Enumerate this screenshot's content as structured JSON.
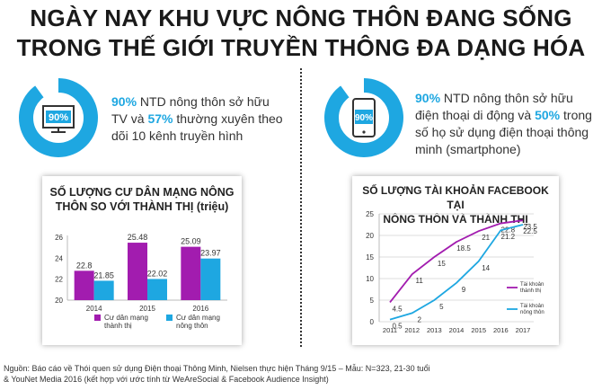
{
  "title": {
    "line1": "NGÀY NAY KHU VỰC NÔNG THÔN ĐANG SỐNG",
    "line2": "TRONG THẾ GIỚI TRUYỀN THÔNG ĐA DẠNG HÓA"
  },
  "stat_tv": {
    "percent": "90%",
    "pct1": "90%",
    "text1": " NTD nông thôn sở hữu",
    "text2a": "TV và ",
    "pct2": "57%",
    "text2b": " thường xuyên theo",
    "text3": "dõi 10 kênh truyền hình",
    "fill_percent": 90
  },
  "stat_phone": {
    "percent": "90%",
    "pct1": "90%",
    "text1": " NTD nông thôn sở hữu",
    "text2a": "điện thoại di động và ",
    "pct2": "50%",
    "text2b": " trong",
    "text3": "số họ sử dụng điện thoại thông",
    "text4": "minh (smartphone)",
    "fill_percent": 90
  },
  "colors": {
    "accent_blue": "#1ea7e1",
    "magenta": "#a21caf",
    "donut_light": "#ffffff"
  },
  "chart_data": [
    {
      "type": "bar",
      "title_line1": "SỐ LƯỢNG CƯ DÂN MẠNG NÔNG",
      "title_line2": "THÔN SO VỚI THÀNH THỊ (triệu)",
      "categories": [
        "2014",
        "2015",
        "2016"
      ],
      "series": [
        {
          "name": "Cư dân mạng thành thị",
          "name_line1": "Cư dân mạng",
          "name_line2": "thành thị",
          "color": "#a21caf",
          "values": [
            22.8,
            25.48,
            25.09
          ],
          "labels": [
            "22.8",
            "25.48",
            "25.09"
          ]
        },
        {
          "name": "Cư dân mạng nông thôn",
          "name_line1": "Cư dân mạng",
          "name_line2": "nông thôn",
          "color": "#1ea7e1",
          "values": [
            21.85,
            22.02,
            23.97
          ],
          "labels": [
            "21.85",
            "22.02",
            "23.97"
          ]
        }
      ],
      "yticks": [
        "20",
        "22",
        "24",
        "26"
      ],
      "ylim": [
        20,
        26
      ],
      "legend": "bottom"
    },
    {
      "type": "line",
      "title_line1": "SỐ LƯỢNG TÀI KHOẢN FACEBOOK TẠI",
      "title_line2": "NÔNG THÔN VÀ THÀNH THỊ",
      "x": [
        "2011",
        "2012",
        "2013",
        "2014",
        "2015",
        "2016",
        "2017"
      ],
      "series": [
        {
          "name": "Tài khoản thành thị",
          "name_line1": "Tài khoản",
          "name_line2": "thành thị",
          "color": "#a21caf",
          "values": [
            4.5,
            11,
            15,
            18.5,
            21,
            22.8,
            23.5
          ],
          "labels": [
            "4.5",
            "11",
            "15",
            "18.5",
            "21",
            "22.8",
            "23.5"
          ]
        },
        {
          "name": "Tài khoản nông thôn",
          "name_line1": "Tài khoản",
          "name_line2": "nông thôn",
          "color": "#1ea7e1",
          "values": [
            0.5,
            2,
            5,
            9,
            14,
            21.2,
            22.5
          ],
          "labels": [
            "0.5",
            "2",
            "5",
            "9",
            "14",
            "21.2",
            "22.5"
          ]
        }
      ],
      "yticks": [
        "0",
        "5",
        "10",
        "15",
        "20",
        "25"
      ],
      "ylim": [
        0,
        25
      ],
      "grid": true,
      "legend": "right"
    }
  ],
  "footer": {
    "line1": "Nguồn: Báo cáo về Thói quen sử dụng Điện thoại Thông Minh, Nielsen thực hiện Tháng 9/15 – Mẫu: N=323, 21-30 tuổi",
    "line2": "& YouNet Media 2016 (kết hợp với ước tính từ WeAreSocial & Facebook Audience Insight)"
  }
}
